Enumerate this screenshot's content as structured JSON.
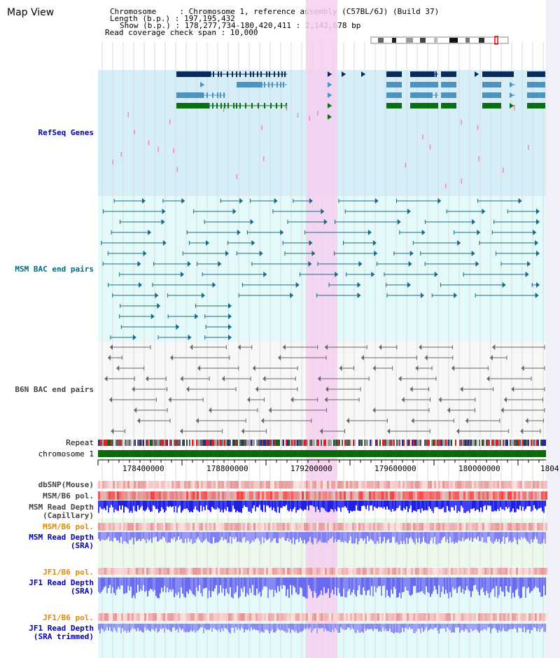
{
  "header": {
    "title": "Map View",
    "chromosome_line": "Chromosome     : Chromosome 1, reference assembly (C57BL/6J) (Build 37)",
    "length_line": "Length (b.p.) : 197,195,432",
    "show_line": "Show (b.p.) : 178,277,734-180,420,411 : 2,142,678 bp",
    "coverage_line": "Read coverage check span : 10,000"
  },
  "tracks": {
    "refseq": "RefSeq Genes",
    "msm_bac": "MSM BAC end pairs",
    "b6n_bac": "B6N BAC end pairs",
    "repeat": "Repeat",
    "chromosome": "chromosome 1",
    "dbsnp": "dbSNP(Mouse)",
    "msm_b6_pol_1": "MSM/B6 pol.",
    "msm_read_depth_cap_1": "MSM Read Depth",
    "msm_read_depth_cap_2": "(Capillary)",
    "msm_b6_pol_2": "MSM/B6 pol.",
    "msm_read_depth_sra_1": "MSM Read Depth",
    "msm_read_depth_sra_2": "(SRA)",
    "jf1_b6_pol_1": "JF1/B6 pol.",
    "jf1_read_depth_sra_1": "JF1 Read Depth",
    "jf1_read_depth_sra_2": "(SRA)",
    "jf1_b6_pol_2": "JF1/B6 pol.",
    "jf1_read_depth_trim_1": "JF1 Read Depth",
    "jf1_read_depth_trim_2": "(SRA trimmed)"
  },
  "axis": {
    "ticks": [
      "178400000",
      "178800000",
      "179200000",
      "179600000",
      "180000000",
      "1804"
    ]
  },
  "colors": {
    "refseq_bg": "#d6eef8",
    "msm_bg": "#e4fafa",
    "b6n_bg": "#f7f7f7",
    "highlight": "#f6cff0",
    "gene_dark": "#0b2a5c",
    "gene_mid": "#4d93be",
    "gene_green": "#0a6e14",
    "msm_line": "#1a6a82",
    "b6n_line": "#666666",
    "chromosome": "#0a6a0a",
    "depth_blue": "#2a2ae8",
    "pol_red": "#e03030"
  }
}
